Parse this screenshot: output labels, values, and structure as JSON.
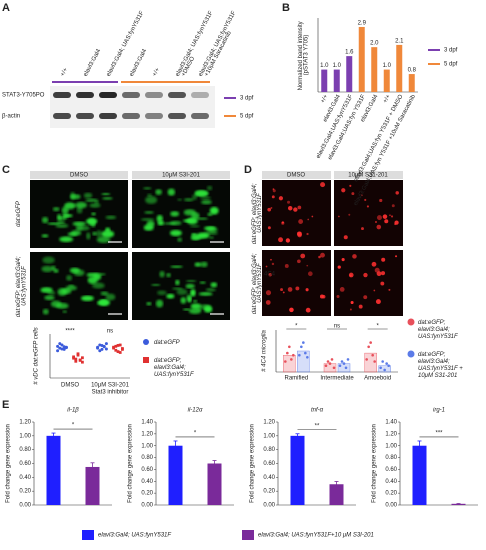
{
  "panels": [
    "A",
    "B",
    "C",
    "D",
    "E"
  ],
  "blot": {
    "lanes": [
      [
        "+/+"
      ],
      [
        "elavl3:Gal4"
      ],
      [
        "elavl3:Gal4; UAS:fynY531F"
      ],
      [
        "elavl3:Gal4"
      ],
      [
        "+/+"
      ],
      [
        "elavl3:Gal4; UAS:fynY531F",
        "+DMSO"
      ],
      [
        "elavl3:Gal4; UAS:fynY531F",
        "+10μM Saracatinib"
      ]
    ],
    "rows": [
      "STAT3-Y705PO",
      "β-actin"
    ],
    "legend": [
      {
        "name": "3 dpf",
        "color": "#7b3fb0"
      },
      {
        "name": "5 dpf",
        "color": "#f0883a"
      }
    ]
  },
  "images": {
    "c": {
      "columns": [
        "DMSO",
        "10μM S3I-201"
      ],
      "rows": [
        "dat:eGFP",
        "dat:eGFP; elavl3:Gal4; UAS:fynY531F"
      ]
    },
    "d": {
      "columns": [
        "DMSO",
        "10μM S31-201"
      ],
      "rows": [
        "dat:eGFP; elavl3:Gal4; UAS:fynY531F",
        "dat:eGFP; elavl3:Gal4; UAS:fynY531F"
      ],
      "stain": "4C4"
    }
  },
  "chart_data": [
    {
      "type": "bar",
      "ylabel": "Normalized band intensity (pSTAT3 Y705)",
      "categories": [
        "+/+",
        "elavl3:Gal4",
        "elavl3:Gal4;UAS:fynY531F",
        "elavl3:Gal4;UAS:fyn Y531F",
        "elavl3:Gal4",
        "+/+",
        "elavl3:Gal4;UAS:fyn Y531F + DMSO",
        "elavl3:Gal4;UAS:fyn Y531F +10uM Saracatinib"
      ],
      "ylim": [
        0,
        3.3
      ],
      "series": [
        {
          "name": "3 dpf",
          "color": "#7b3fb0",
          "values": [
            1.0,
            1.0,
            1.6,
            null,
            null,
            null,
            null,
            null
          ],
          "value_labels": [
            "1.0",
            "1.0",
            "1.6",
            null,
            null,
            null,
            null,
            null
          ]
        },
        {
          "name": "5 dpf",
          "color": "#f0883a",
          "values": [
            null,
            null,
            null,
            2.9,
            2.0,
            1.0,
            2.1,
            0.8
          ],
          "value_labels": [
            null,
            null,
            null,
            "2.9",
            "2.0",
            "1.0",
            "2.1",
            "0.8"
          ]
        }
      ]
    },
    {
      "type": "strip",
      "ylabel": "# vDC dat:eGFP cells",
      "categories": [
        "DMSO",
        "10μM S3I-201"
      ],
      "x_note": "Stat3 inhibitor",
      "significance": [
        "****",
        "ns"
      ],
      "ylim": [
        0,
        100
      ],
      "series": [
        {
          "name": "dat:eGFP",
          "color": "#3b5bdb",
          "marker": "circle",
          "points": [
            [
              72,
              68,
              75,
              65,
              70,
              62,
              78,
              66,
              71,
              69
            ],
            [
              70,
              75,
              65,
              72,
              78,
              68,
              62,
              74,
              71,
              66
            ]
          ]
        },
        {
          "name": "dat:eGFP; elavl3:Gal4; UAS:fynY531F",
          "color": "#e03131",
          "marker": "square",
          "points": [
            [
              45,
              38,
              52,
              41,
              36,
              48,
              43,
              55,
              40,
              46
            ],
            [
              68,
              72,
              60,
              75,
              65,
              70,
              63,
              74,
              58,
              67
            ]
          ]
        }
      ]
    },
    {
      "type": "bar_points",
      "ylabel": "# 4C4 microglia",
      "categories": [
        "Ramified",
        "Intermediate",
        "Amoeboid"
      ],
      "significance": [
        "*",
        "ns",
        "*"
      ],
      "ylim": [
        0,
        20
      ],
      "series": [
        {
          "name": "dat:eGFP; elavl3:Gal4; UAS:fynY531F",
          "color": "#e8505b",
          "values": [
            8,
            4,
            9
          ],
          "points": [
            [
              5,
              9,
              12,
              6,
              8
            ],
            [
              3,
              5,
              4,
              6,
              2
            ],
            [
              6,
              12,
              14,
              8,
              5
            ]
          ]
        },
        {
          "name": "dat:eGFP; elavl3:Gal4; UAS:fynY531F + 10μM S31-201",
          "color": "#5b7be8",
          "values": [
            10,
            4,
            3
          ],
          "points": [
            [
              8,
              12,
              14,
              9,
              7
            ],
            [
              3,
              5,
              4,
              2,
              6
            ],
            [
              2,
              5,
              1,
              4,
              3
            ]
          ]
        }
      ]
    },
    {
      "type": "bar_panels",
      "ylabel": "Fold change gene expression",
      "panels": [
        {
          "title": "il-1β",
          "significance": "*",
          "ylim": [
            0,
            1.2
          ],
          "yticks": [
            {
              "value": 0,
              "label": "0.00"
            },
            {
              "value": 0.2,
              "label": "0.20"
            },
            {
              "value": 0.4,
              "label": "0.40"
            },
            {
              "value": 0.6,
              "label": "0.60"
            },
            {
              "value": 0.8,
              "label": "0.80"
            },
            {
              "value": 1,
              "label": "1.00"
            },
            {
              "value": 1.2,
              "label": "1.20"
            }
          ]
        },
        {
          "title": "il-12α",
          "significance": "*",
          "ylim": [
            0,
            1.4
          ],
          "yticks": [
            {
              "value": 0,
              "label": "0.00"
            },
            {
              "value": 0.2,
              "label": "0.20"
            },
            {
              "value": 0.4,
              "label": "0.40"
            },
            {
              "value": 0.6,
              "label": "0.60"
            },
            {
              "value": 0.8,
              "label": "0.80"
            },
            {
              "value": 1,
              "label": "1.00"
            },
            {
              "value": 1.2,
              "label": "1.20"
            },
            {
              "value": 1.4,
              "label": "1.40"
            }
          ]
        },
        {
          "title": "tnf-α",
          "significance": "**",
          "ylim": [
            0,
            1.2
          ],
          "yticks": [
            {
              "value": 0,
              "label": "0.00"
            },
            {
              "value": 0.2,
              "label": "0.20"
            },
            {
              "value": 0.4,
              "label": "0.40"
            },
            {
              "value": 0.6,
              "label": "0.60"
            },
            {
              "value": 0.8,
              "label": "0.80"
            },
            {
              "value": 1,
              "label": "1.00"
            },
            {
              "value": 1.2,
              "label": "1.20"
            }
          ]
        },
        {
          "title": "irg-1",
          "significance": "***",
          "ylim": [
            0,
            1.4
          ],
          "yticks": [
            {
              "value": 0,
              "label": "0.00"
            },
            {
              "value": 0.2,
              "label": "0.20"
            },
            {
              "value": 0.4,
              "label": "0.40"
            },
            {
              "value": 0.6,
              "label": "0.60"
            },
            {
              "value": 0.8,
              "label": "0.80"
            },
            {
              "value": 1,
              "label": "1.00"
            },
            {
              "value": 1.2,
              "label": "1.20"
            },
            {
              "value": 1.4,
              "label": "1.40"
            }
          ]
        }
      ],
      "series": [
        {
          "name": "elavl3:Gal4; UAS:fynY531F",
          "color": "#1f1fff",
          "values": [
            1.0,
            1.0,
            1.0,
            1.0
          ],
          "errors": [
            0.04,
            0.08,
            0.03,
            0.08
          ]
        },
        {
          "name": "elavl3:Gal4; UAS:fynY531F+10 μM S3I-201",
          "color": "#7a2a9a",
          "values": [
            0.55,
            0.7,
            0.3,
            0.02
          ],
          "errors": [
            0.06,
            0.05,
            0.04,
            0.005
          ]
        }
      ]
    }
  ]
}
